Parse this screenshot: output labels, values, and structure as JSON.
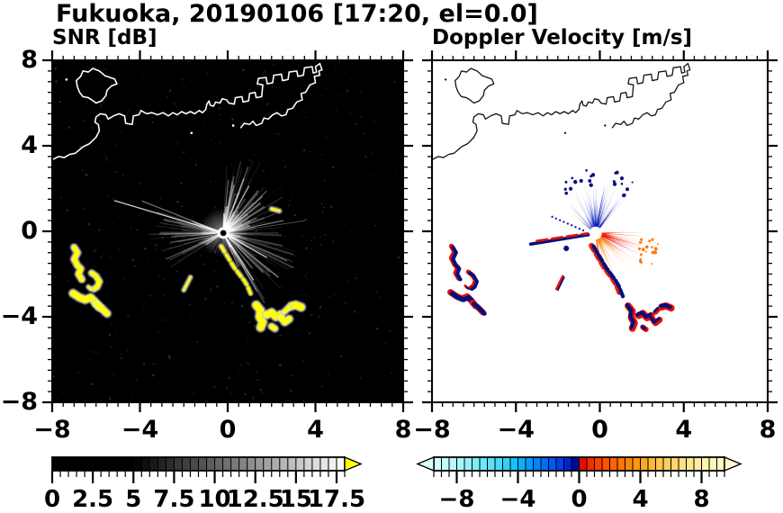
{
  "title": "Fukuoka, 20190106 [17:20, el=0.0]",
  "panels": {
    "snr": {
      "label": "SNR [dB]"
    },
    "doppler": {
      "label": "Doppler Velocity [m/s]"
    }
  },
  "axes": {
    "range": [
      -8,
      8
    ],
    "major_step": 4,
    "minor_step": 0.5,
    "xtick_values": [
      -8,
      -4,
      0,
      4,
      8
    ],
    "xticklabels": [
      "−8",
      "−4",
      "0",
      "4",
      "8"
    ],
    "ytick_values": [
      8,
      4,
      0,
      -4,
      -8
    ],
    "yticklabels": [
      "8",
      "4",
      "0",
      "−4",
      "−8"
    ]
  },
  "colorbars": {
    "snr": {
      "range": [
        0,
        18
      ],
      "black_below": 5,
      "label_values": [
        0,
        2.5,
        5,
        7.5,
        10,
        12.5,
        15,
        17.5
      ],
      "labels": [
        "0",
        "2.5",
        "5",
        "7.5",
        "10",
        "12.5",
        "15",
        "17.5"
      ],
      "major_step": 2.5,
      "over_color": "#ffff00"
    },
    "doppler": {
      "range": [
        -9.5,
        9.5
      ],
      "label_values": [
        -8,
        -4,
        0,
        4,
        8
      ],
      "labels": [
        "−8",
        "−4",
        "0",
        "4",
        "8"
      ],
      "major_step": 4,
      "stops": [
        [
          0,
          216,
          255,
          255
        ],
        [
          0.08,
          176,
          247,
          252
        ],
        [
          0.16,
          118,
          234,
          248
        ],
        [
          0.24,
          58,
          214,
          246
        ],
        [
          0.3,
          8,
          178,
          250
        ],
        [
          0.36,
          0,
          128,
          255
        ],
        [
          0.42,
          0,
          78,
          244
        ],
        [
          0.46,
          0,
          38,
          214
        ],
        [
          0.49,
          0,
          6,
          142
        ],
        [
          0.4999,
          0,
          0,
          112
        ],
        [
          0.5001,
          208,
          0,
          0
        ],
        [
          0.53,
          244,
          34,
          0
        ],
        [
          0.58,
          255,
          74,
          0
        ],
        [
          0.64,
          255,
          114,
          0
        ],
        [
          0.7,
          255,
          154,
          12
        ],
        [
          0.76,
          255,
          190,
          60
        ],
        [
          0.84,
          255,
          219,
          120
        ],
        [
          0.92,
          255,
          239,
          168
        ],
        [
          1,
          255,
          249,
          204
        ]
      ]
    }
  },
  "chart_data": {
    "type": "heatmap",
    "title": "Fukuoka, 20190106 [17:20, el=0.0]",
    "panels": [
      {
        "name": "SNR",
        "units": "dB",
        "xlim": [
          -8,
          8
        ],
        "ylim": [
          -8,
          8
        ],
        "background": "#000000",
        "colorbar_range": [
          0,
          18
        ],
        "colorbar_ticks": [
          0,
          2.5,
          5,
          7.5,
          10,
          12.5,
          15,
          17.5
        ],
        "description": "Radar PPI scan: grayscale radial SNR streaks from center, yellow saturated echoes, white coastline"
      },
      {
        "name": "Doppler Velocity",
        "units": "m/s",
        "xlim": [
          -8,
          8
        ],
        "ylim": [
          -8,
          8
        ],
        "background": "#ffffff",
        "colorbar_range": [
          -9.5,
          9.5
        ],
        "colorbar_ticks": [
          -8,
          -4,
          0,
          4,
          8
        ],
        "description": "Radar PPI scan: blue (toward, north fan) and red-orange (away, southeast fan) velocity spikes, black coastline"
      }
    ],
    "radar_center": [
      -0.2,
      -0.08
    ],
    "features": {
      "coast": [
        [
          -8,
          3.35
        ],
        [
          -7.7,
          3.5
        ],
        [
          -7.45,
          3.45
        ],
        [
          -7.2,
          3.6
        ],
        [
          -6.95,
          3.65
        ],
        [
          -6.6,
          3.95
        ],
        [
          -6.3,
          4.1
        ],
        [
          -6.0,
          4.4
        ],
        [
          -5.85,
          4.7
        ],
        [
          -5.9,
          5.0
        ],
        [
          -6.05,
          5.1
        ],
        [
          -6.0,
          5.35
        ],
        [
          -5.8,
          5.5
        ],
        [
          -5.55,
          5.45
        ],
        [
          -5.45,
          5.25
        ],
        [
          -5.2,
          5.4
        ],
        [
          -4.95,
          5.5
        ],
        [
          -4.7,
          5.4
        ],
        [
          -4.65,
          5.05
        ],
        [
          -4.35,
          5.0
        ],
        [
          -4.3,
          5.4
        ],
        [
          -4.05,
          5.45
        ],
        [
          -3.95,
          5.65
        ],
        [
          -3.7,
          5.5
        ],
        [
          -3.45,
          5.55
        ],
        [
          -3.2,
          5.45
        ],
        [
          -2.95,
          5.55
        ],
        [
          -2.7,
          5.4
        ],
        [
          -2.5,
          5.55
        ],
        [
          -2.3,
          5.45
        ],
        [
          -2.1,
          5.6
        ],
        [
          -1.9,
          5.5
        ],
        [
          -1.7,
          5.6
        ],
        [
          -1.5,
          5.5
        ],
        [
          -1.3,
          5.65
        ],
        [
          -1.15,
          5.55
        ],
        [
          -1.0,
          5.7
        ],
        [
          -0.95,
          5.95
        ],
        [
          -0.85,
          6.1
        ],
        [
          -0.8,
          5.9
        ],
        [
          -0.65,
          5.85
        ],
        [
          -0.55,
          6.05
        ],
        [
          -0.35,
          6.0
        ],
        [
          -0.25,
          6.2
        ],
        [
          -0.05,
          6.15
        ],
        [
          0.05,
          6.0
        ],
        [
          0.3,
          5.95
        ],
        [
          0.35,
          6.25
        ],
        [
          0.65,
          6.3
        ],
        [
          0.7,
          6.05
        ],
        [
          0.95,
          6.1
        ],
        [
          1.0,
          6.45
        ],
        [
          1.25,
          6.5
        ],
        [
          1.3,
          6.25
        ],
        [
          1.55,
          6.3
        ],
        [
          1.6,
          6.85
        ],
        [
          1.35,
          6.9
        ],
        [
          1.4,
          7.15
        ],
        [
          1.75,
          7.2
        ],
        [
          1.8,
          6.9
        ],
        [
          2.05,
          6.95
        ],
        [
          2.1,
          7.3
        ],
        [
          2.45,
          7.35
        ],
        [
          2.5,
          7.05
        ],
        [
          2.75,
          7.1
        ],
        [
          2.8,
          7.45
        ],
        [
          3.15,
          7.5
        ],
        [
          3.2,
          7.25
        ],
        [
          3.45,
          7.3
        ],
        [
          3.5,
          7.65
        ],
        [
          3.85,
          7.7
        ],
        [
          3.9,
          7.4
        ],
        [
          4.05,
          7.45
        ],
        [
          4.0,
          7.7
        ],
        [
          4.2,
          7.85
        ],
        [
          4.3,
          7.55
        ],
        [
          4.15,
          7.5
        ],
        [
          4.2,
          7.3
        ],
        [
          3.95,
          7.25
        ],
        [
          4.0,
          6.95
        ],
        [
          3.75,
          6.85
        ],
        [
          3.55,
          6.5
        ],
        [
          3.35,
          6.45
        ],
        [
          3.4,
          6.15
        ],
        [
          3.15,
          6.05
        ],
        [
          2.95,
          5.75
        ],
        [
          2.75,
          5.7
        ],
        [
          2.65,
          5.45
        ],
        [
          2.45,
          5.4
        ],
        [
          2.25,
          5.55
        ],
        [
          2.05,
          5.45
        ],
        [
          1.85,
          5.25
        ],
        [
          1.65,
          5.3
        ],
        [
          1.55,
          5.05
        ],
        [
          1.3,
          4.95
        ],
        [
          1.15,
          5.15
        ],
        [
          1.0,
          5.0
        ],
        [
          0.75,
          5.05
        ],
        [
          0.6,
          4.85
        ]
      ],
      "island": [
        [
          -6.85,
          6.75
        ],
        [
          -6.9,
          7.05
        ],
        [
          -6.7,
          7.25
        ],
        [
          -6.6,
          7.5
        ],
        [
          -6.35,
          7.45
        ],
        [
          -6.15,
          7.62
        ],
        [
          -5.85,
          7.5
        ],
        [
          -5.6,
          7.28
        ],
        [
          -5.15,
          7.12
        ],
        [
          -5.05,
          6.9
        ],
        [
          -5.3,
          6.8
        ],
        [
          -5.5,
          6.6
        ],
        [
          -5.55,
          6.35
        ],
        [
          -5.75,
          6.1
        ],
        [
          -6.0,
          6.0
        ],
        [
          -6.2,
          6.15
        ],
        [
          -6.35,
          6.25
        ],
        [
          -6.6,
          6.3
        ],
        [
          -6.75,
          6.5
        ]
      ],
      "islets": [
        [
          -7.35,
          7.1
        ],
        [
          -1.65,
          4.6
        ],
        [
          0.25,
          4.95
        ]
      ],
      "patches": [
        {
          "pts": [
            [
              -7.0,
              -0.75
            ],
            [
              -6.85,
              -1.0
            ],
            [
              -7.0,
              -1.3
            ],
            [
              -6.85,
              -1.6
            ],
            [
              -6.7,
              -1.75
            ],
            [
              -6.8,
              -2.0
            ],
            [
              -6.65,
              -2.25
            ]
          ],
          "w": 0.22
        },
        {
          "pts": [
            [
              -6.2,
              -1.95
            ],
            [
              -6.0,
              -2.1
            ],
            [
              -5.85,
              -2.35
            ],
            [
              -5.95,
              -2.6
            ],
            [
              -6.1,
              -2.7
            ]
          ],
          "w": 0.2
        },
        {
          "pts": [
            [
              -6.35,
              -2.6
            ],
            [
              -6.25,
              -2.7
            ]
          ],
          "w": 0.1
        },
        {
          "pts": [
            [
              -7.05,
              -2.9
            ],
            [
              -6.75,
              -3.1
            ],
            [
              -6.5,
              -3.2
            ],
            [
              -6.25,
              -3.1
            ],
            [
              -6.05,
              -3.3
            ],
            [
              -5.85,
              -3.55
            ]
          ],
          "w": 0.28
        },
        {
          "pts": [
            [
              -6.0,
              -3.4
            ],
            [
              -5.75,
              -3.6
            ],
            [
              -5.5,
              -3.85
            ]
          ],
          "w": 0.26
        },
        {
          "pts": [
            [
              -2.0,
              -2.75
            ],
            [
              -1.85,
              -2.45
            ],
            [
              -1.7,
              -2.15
            ]
          ],
          "w": 0.09
        }
      ],
      "chain": {
        "pts": [
          [
            -0.3,
            -0.7
          ],
          [
            -0.15,
            -0.95
          ],
          [
            0.0,
            -1.2
          ],
          [
            0.15,
            -1.45
          ],
          [
            0.3,
            -1.7
          ],
          [
            0.45,
            -1.9
          ],
          [
            0.6,
            -2.1
          ],
          [
            0.75,
            -2.3
          ],
          [
            0.9,
            -2.55
          ],
          [
            1.0,
            -2.8
          ],
          [
            1.1,
            -3.05
          ]
        ],
        "w": 0.14
      },
      "cluster": [
        {
          "pts": [
            [
              1.3,
              -3.45
            ],
            [
              1.5,
              -3.7
            ],
            [
              1.45,
              -4.0
            ],
            [
              1.6,
              -4.25
            ],
            [
              1.5,
              -4.5
            ]
          ],
          "w": 0.3
        },
        {
          "pts": [
            [
              1.8,
              -3.9
            ],
            [
              2.0,
              -3.8
            ],
            [
              2.2,
              -4.0
            ],
            [
              2.4,
              -3.9
            ]
          ],
          "w": 0.3
        },
        {
          "pts": [
            [
              2.45,
              -4.05
            ],
            [
              2.6,
              -4.25
            ],
            [
              2.8,
              -4.1
            ]
          ],
          "w": 0.26
        },
        {
          "pts": [
            [
              2.9,
              -3.5
            ],
            [
              3.1,
              -3.45
            ],
            [
              3.35,
              -3.55
            ]
          ],
          "w": 0.3
        },
        {
          "pts": [
            [
              2.0,
              -4.45
            ],
            [
              2.15,
              -4.55
            ]
          ],
          "w": 0.22
        },
        {
          "pts": [
            [
              2.6,
              -3.75
            ],
            [
              2.75,
              -3.6
            ]
          ],
          "w": 0.2
        }
      ],
      "yellow_dash": {
        "pts": [
          [
            2.0,
            1.05
          ],
          [
            2.35,
            0.95
          ]
        ],
        "w": 0.1
      },
      "west_streak": {
        "navy": [
          [
            -3.3,
            -0.6
          ],
          [
            -0.5,
            -0.15
          ]
        ],
        "red": [
          [
            -3.0,
            -0.45
          ],
          [
            -0.6,
            -0.1
          ]
        ],
        "w": 0.15
      }
    },
    "render": {
      "snr_rays": {
        "seed": 7,
        "east": {
          "n": 175,
          "a0": -68,
          "a1": 88,
          "lmax": 3.4
        },
        "west": {
          "n": 85,
          "a0": 158,
          "a1": 216,
          "lmax": 2.9
        },
        "bright": [
          [
            163,
            5.2,
            0.85
          ],
          [
            158,
            4.0,
            0.45
          ],
          [
            -30,
            2.3,
            0.8
          ],
          [
            62,
            2.5,
            0.7
          ],
          [
            78,
            2.3,
            0.6
          ],
          [
            205,
            2.9,
            0.35
          ],
          [
            -58,
            2.6,
            0.75
          ],
          [
            40,
            2.2,
            0.55
          ],
          [
            12,
            2.8,
            0.5
          ]
        ],
        "dark": [
          [
            -48,
            2.6
          ],
          [
            -54,
            2.4
          ],
          [
            188,
            3.2
          ],
          [
            194,
            3.0
          ],
          [
            242,
            4.0
          ],
          [
            252,
            4.0
          ],
          [
            260,
            4.0
          ]
        ]
      },
      "dop_spikes": {
        "seed": 11,
        "blue": {
          "n": 100,
          "a0": 48,
          "a1": 122,
          "rmax": 2.1,
          "colors": [
            "#0000a0",
            "#0018cc",
            "#1535e8",
            "#000080",
            "#2244ee"
          ]
        },
        "blue_nw": {
          "n": 12,
          "a0": 122,
          "a1": 152,
          "rmax": 1.5
        },
        "warm": {
          "n": 115,
          "a0": -86,
          "a1": 2,
          "rmax": 2.0,
          "reds": [
            "#dd0000",
            "#ee2200",
            "#ff3300"
          ],
          "oranges": [
            "#ff6600",
            "#ff7700",
            "#ff8811",
            "#ff9922"
          ]
        },
        "navy": "#000f80",
        "red_fringe": "#e81000"
      }
    }
  }
}
